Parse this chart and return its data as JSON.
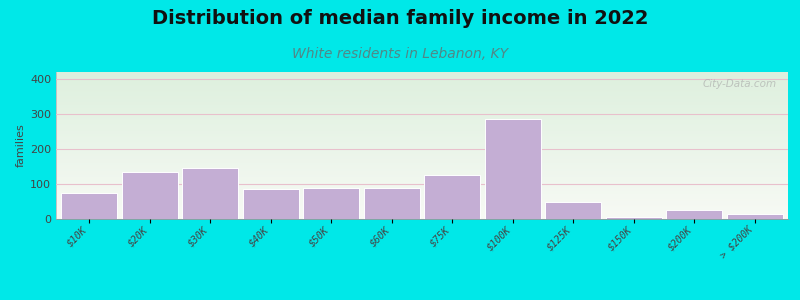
{
  "title": "Distribution of median family income in 2022",
  "subtitle": "White residents in Lebanon, KY",
  "ylabel": "families",
  "categories": [
    "$10K",
    "$20K",
    "$30K",
    "$40K",
    "$50K",
    "$60K",
    "$75K",
    "$100K",
    "$125K",
    "$150K",
    "$200K",
    "> $200K"
  ],
  "values": [
    75,
    135,
    145,
    85,
    88,
    88,
    125,
    285,
    50,
    5,
    27,
    15
  ],
  "bar_color": "#c4aed4",
  "bar_edge_color": "#ffffff",
  "background_outer": "#00e8e8",
  "plot_bg_top": "#ddeedd",
  "plot_bg_bottom": "#f8f8f4",
  "grid_color": "#e8c0cc",
  "title_fontsize": 14,
  "subtitle_fontsize": 10,
  "subtitle_color": "#508888",
  "ylabel_fontsize": 8,
  "tick_fontsize": 7,
  "ytick_values": [
    0,
    100,
    200,
    300,
    400
  ],
  "ylim": [
    0,
    420
  ],
  "watermark": "City-Data.com"
}
